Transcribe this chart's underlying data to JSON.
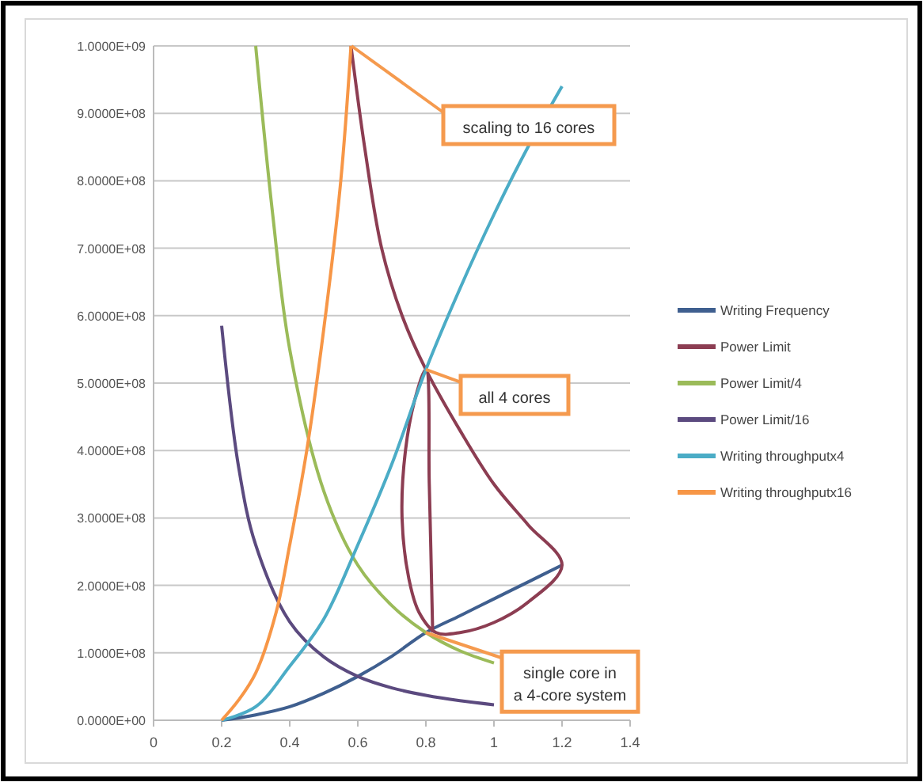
{
  "chart_data": {
    "type": "line",
    "xlim": [
      0,
      1.4
    ],
    "xticks": [
      0,
      0.2,
      0.4,
      0.6,
      0.8,
      1,
      1.2,
      1.4
    ],
    "ylim": [
      0,
      1000000000
    ],
    "yticks": [
      {
        "value": 0,
        "label": "0.0000E+00"
      },
      {
        "value": 100000000,
        "label": "1.0000E+08"
      },
      {
        "value": 200000000,
        "label": "2.0000E+08"
      },
      {
        "value": 300000000,
        "label": "3.0000E+08"
      },
      {
        "value": 400000000,
        "label": "4.0000E+08"
      },
      {
        "value": 500000000,
        "label": "5.0000E+08"
      },
      {
        "value": 600000000,
        "label": "6.0000E+08"
      },
      {
        "value": 700000000,
        "label": "7.0000E+08"
      },
      {
        "value": 800000000,
        "label": "8.0000E+08"
      },
      {
        "value": 900000000,
        "label": "9.0000E+08"
      },
      {
        "value": 1000000000,
        "label": "1.0000E+09"
      }
    ],
    "grid": "y",
    "legend": "right",
    "marker": "none",
    "line_style": "solid",
    "series": [
      {
        "name": "Writing Frequency",
        "color": "#3f5f8f",
        "x": [
          0.2,
          0.3,
          0.4,
          0.5,
          0.6,
          0.7,
          0.8,
          0.9,
          1.0,
          1.1,
          1.2
        ],
        "values": [
          0,
          8000000,
          20000000,
          40000000,
          65000000,
          95000000,
          130000000,
          155000000,
          180000000,
          205000000,
          230000000
        ]
      },
      {
        "name": "Power Limit",
        "color": "#8c3d52",
        "x": [
          0.58,
          0.62,
          0.67,
          0.73,
          0.8,
          0.9,
          1.0,
          1.1,
          1.2,
          1.1,
          1.0,
          0.9,
          0.83,
          0.78,
          0.75,
          0.73,
          0.74,
          0.77,
          0.8,
          0.81,
          0.82
        ],
        "values": [
          1000000000,
          850000000,
          700000000,
          600000000,
          520000000,
          430000000,
          350000000,
          290000000,
          230000000,
          175000000,
          145000000,
          130000000,
          130000000,
          160000000,
          210000000,
          300000000,
          400000000,
          480000000,
          520000000,
          350000000,
          130000000
        ]
      },
      {
        "name": "Power Limit/4",
        "color": "#9bbb59",
        "x": [
          0.3,
          0.35,
          0.4,
          0.5,
          0.6,
          0.7,
          0.8,
          0.9,
          1.0
        ],
        "values": [
          1000000000,
          750000000,
          550000000,
          340000000,
          230000000,
          170000000,
          130000000,
          103000000,
          85000000
        ]
      },
      {
        "name": "Power Limit/16",
        "color": "#5b4a7f",
        "x": [
          0.2,
          0.25,
          0.3,
          0.4,
          0.5,
          0.6,
          0.7,
          0.8,
          0.9,
          1.0
        ],
        "values": [
          585000000,
          375000000,
          260000000,
          146000000,
          94000000,
          65000000,
          48000000,
          37000000,
          29000000,
          23000000
        ]
      },
      {
        "name": "Writing throughputx4",
        "color": "#4bacc6",
        "x": [
          0.2,
          0.3,
          0.4,
          0.5,
          0.6,
          0.7,
          0.8,
          0.9,
          1.0,
          1.1,
          1.2
        ],
        "values": [
          0,
          20000000,
          80000000,
          150000000,
          260000000,
          380000000,
          520000000,
          640000000,
          750000000,
          850000000,
          940000000
        ]
      },
      {
        "name": "Writing throughputx16",
        "color": "#f79646",
        "x": [
          0.2,
          0.25,
          0.3,
          0.36,
          0.4,
          0.45,
          0.5,
          0.55,
          0.58
        ],
        "values": [
          0,
          30000000,
          70000000,
          160000000,
          260000000,
          400000000,
          580000000,
          800000000,
          1000000000
        ]
      }
    ],
    "annotations": [
      "scaling to 16 cores",
      {
        "text": "all 4 cores",
        "x": 0.8,
        "y": 520000000
      },
      {
        "text": "single core in a 4-core system",
        "x": 0.8,
        "y": 130000000
      }
    ]
  }
}
